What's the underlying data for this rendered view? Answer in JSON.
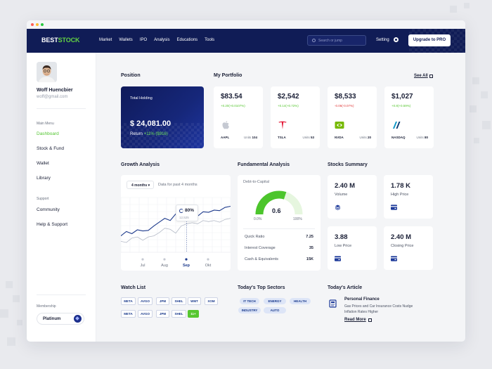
{
  "brand": {
    "part1": "BEST",
    "part2": "STOCK"
  },
  "nav": {
    "items": [
      "Market",
      "Wallets",
      "IPO",
      "Analysis",
      "Educations",
      "Tools"
    ],
    "search_placeholder": "Search or jump",
    "setting_label": "Setting",
    "upgrade_label": "Upgrade to PRO"
  },
  "user": {
    "name": "Woff Huencbier",
    "email": "woff@gmail.com"
  },
  "sidebar": {
    "main_menu_label": "Main Menu",
    "main_items": [
      "Dashboard",
      "Stock & Fund",
      "Wallet",
      "Library"
    ],
    "active": "Dashboard",
    "support_label": "Support",
    "support_items": [
      "Community",
      "Help & Support"
    ],
    "membership_label": "Membership",
    "membership_value": "Platinum"
  },
  "position": {
    "title": "Position",
    "total_label": "Total Holding",
    "total_value": "$ 24,081.00",
    "return_label": "Return",
    "return_value": "+11% ($916)"
  },
  "portfolio": {
    "title": "My Portfolio",
    "see_all": "See All",
    "units_label": "Units",
    "stocks": [
      {
        "price": "$83.54",
        "change": "+0.20(+0.0107%)",
        "ticker": "AAPL",
        "units": "104",
        "positive": true,
        "icon": "apple-icon"
      },
      {
        "price": "$2,542",
        "change": "+0.14(+0.72%)",
        "ticker": "TSLA",
        "units": "53",
        "positive": true,
        "icon": "tesla-icon"
      },
      {
        "price": "$8,533",
        "change": "-0.06(-0.07%)",
        "ticker": "NVDA",
        "units": "20",
        "positive": false,
        "icon": "nvidia-icon"
      },
      {
        "price": "$1,027",
        "change": "+0.8(+0.59%)",
        "ticker": "NASDAQ",
        "units": "80",
        "positive": true,
        "icon": "nasdaq-icon"
      }
    ]
  },
  "growth": {
    "title": "Growth Analysis",
    "range_select": "4 months",
    "range_desc": "Data for past 4 months",
    "tooltip_pct": "80%",
    "tooltip_value": "12,525"
  },
  "chart_data": {
    "type": "line",
    "x_labels": [
      "Jul",
      "Aug",
      "Sep",
      "Okt"
    ],
    "active_label": "Sep",
    "series": [
      {
        "color": "#1d3a8c",
        "values": [
          30,
          38,
          34,
          41,
          39,
          40,
          48,
          55,
          62,
          58,
          70,
          66,
          61,
          64,
          66,
          74,
          73,
          77,
          76,
          82,
          84
        ]
      },
      {
        "color": "#b3b9c6",
        "values": [
          20,
          18,
          26,
          28,
          22,
          28,
          30,
          36,
          44,
          42,
          35,
          48,
          52,
          54,
          52,
          58,
          56,
          58,
          55,
          60,
          62
        ]
      }
    ],
    "ylim": [
      0,
      100
    ]
  },
  "fundamental": {
    "title": "Fundamental Analysis",
    "gauge_label": "Debt-to-Capital",
    "gauge_value": "0.6",
    "gauge_fraction": 0.6,
    "min_label": "0.0%",
    "max_label": "100%",
    "rows": [
      {
        "label": "Quick Ratio",
        "value": "7.25"
      },
      {
        "label": "Interest Coverage",
        "value": "35"
      },
      {
        "label": "Cash & Equivalents",
        "value": "15K"
      }
    ]
  },
  "summary": {
    "title": "Stocks Summary",
    "items": [
      {
        "value": "2.40 M",
        "label": "Volume",
        "icon": "layers-icon"
      },
      {
        "value": "1.78 K",
        "label": "High Price",
        "icon": "card-icon"
      },
      {
        "value": "3.88",
        "label": "Low Price",
        "icon": "card-icon"
      },
      {
        "value": "2.40 M",
        "label": "Closing Price",
        "icon": "card-icon"
      }
    ]
  },
  "watchlist": {
    "title": "Watch List",
    "row1": [
      "META",
      "AVGO",
      "JPM",
      "SHEL",
      "WMT",
      "XOM"
    ],
    "row2": [
      "META",
      "AVGO",
      "JPM",
      "SHEL",
      "11+"
    ]
  },
  "sectors": {
    "title": "Today's Top Sectors",
    "items": [
      "IT TECH",
      "ENERGY",
      "HEALTH",
      "INDUSTRY",
      "AUTO"
    ]
  },
  "article": {
    "title": "Today's Article",
    "headline": "Personal Finance",
    "desc": "Gas Prices and Car Insurance Costs Nudge Inflation Rates Higher",
    "read_more": "Read More"
  },
  "colors": {
    "navy": "#101c56",
    "green": "#56c630",
    "red": "#e03a3a",
    "accent": "#1d3a8c"
  }
}
